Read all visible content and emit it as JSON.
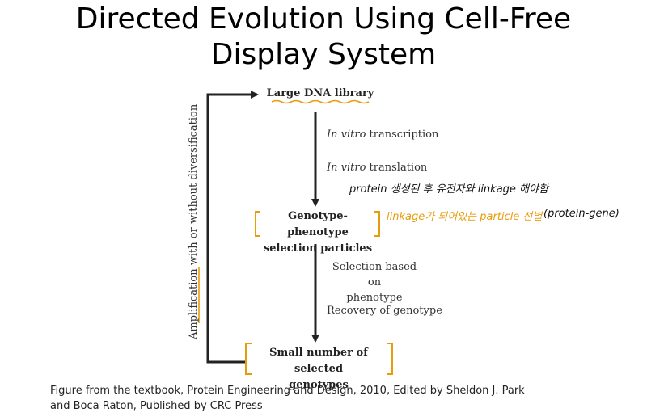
{
  "title": {
    "line1": "Directed Evolution Using Cell-Free",
    "line2": "Display System"
  },
  "diagram": {
    "nodes": {
      "library": "Large DNA library",
      "particles_line1": "Genotype-phenotype",
      "particles_line2": "selection particles",
      "selected_line1": "Small number of selected",
      "selected_line2": "genotypes"
    },
    "steps": {
      "transcription_italic": "In vitro",
      "transcription_rest": " transcription",
      "translation_italic": "In vitro",
      "translation_rest": " translation",
      "selection_line1": "Selection based on",
      "selection_line2": "phenotype",
      "recovery": "Recovery of genotype"
    },
    "loop_label": "Amplification with or without diversification"
  },
  "annotations": {
    "handwritten_note_1": "protein 생성된 후 유전자와 linkage 해야함",
    "handwritten_note_2_orange": "linkage가 되어있는 particle 선별",
    "handwritten_note_2_black": "(protein-gene)"
  },
  "caption": {
    "line1": "Figure from the textbook, Protein Engineering and Design, 2010, Edited by Sheldon J. Park",
    "line2": "and Boca Raton, Published by CRC Press"
  },
  "colors": {
    "highlight": "#e89c0c",
    "line": "#222222"
  }
}
